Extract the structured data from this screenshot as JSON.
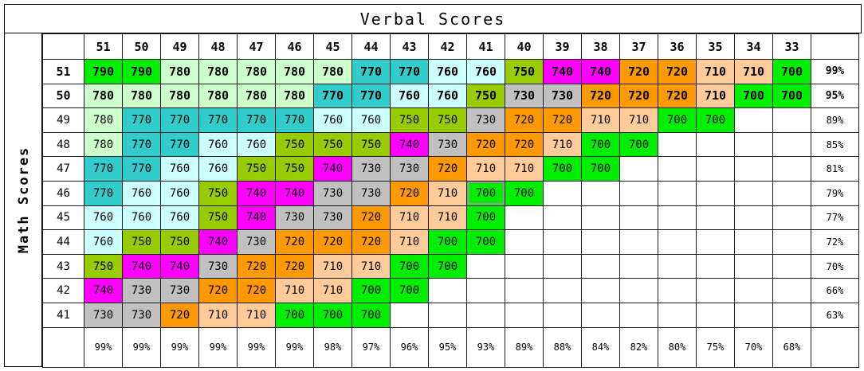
{
  "title": "Verbal Scores",
  "row_axis_label": "Math Scores",
  "verbal_headers": [
    "51",
    "50",
    "49",
    "48",
    "47",
    "46",
    "45",
    "44",
    "43",
    "42",
    "41",
    "40",
    "39",
    "38",
    "37",
    "36",
    "35",
    "34",
    "33"
  ],
  "rows": [
    {
      "math": "51",
      "pct": "99%",
      "bold": true,
      "cells": [
        "790",
        "790",
        "780",
        "780",
        "780",
        "780",
        "780",
        "770",
        "770",
        "760",
        "760",
        "750",
        "740",
        "740",
        "720",
        "720",
        "710",
        "710",
        "700"
      ]
    },
    {
      "math": "50",
      "pct": "95%",
      "bold": true,
      "cells": [
        "780",
        "780",
        "780",
        "780",
        "780",
        "780",
        "770",
        "770",
        "760",
        "760",
        "750",
        "730",
        "730",
        "720",
        "720",
        "720",
        "710",
        "700",
        "700"
      ]
    },
    {
      "math": "49",
      "pct": "89%",
      "bold": false,
      "cells": [
        "780",
        "770",
        "770",
        "770",
        "770",
        "770",
        "760",
        "760",
        "750",
        "750",
        "730",
        "720",
        "720",
        "710",
        "710",
        "700",
        "700",
        "",
        ""
      ]
    },
    {
      "math": "48",
      "pct": "85%",
      "bold": false,
      "cells": [
        "780",
        "770",
        "770",
        "760",
        "760",
        "750",
        "750",
        "750",
        "740",
        "730",
        "720",
        "720",
        "710",
        "700",
        "700",
        "",
        "",
        "",
        ""
      ]
    },
    {
      "math": "47",
      "pct": "81%",
      "bold": false,
      "cells": [
        "770",
        "770",
        "760",
        "760",
        "750",
        "750",
        "740",
        "730",
        "730",
        "720",
        "710",
        "710",
        "700",
        "700",
        "",
        "",
        "",
        "",
        ""
      ]
    },
    {
      "math": "46",
      "pct": "79%",
      "bold": false,
      "cells": [
        "770",
        "760",
        "760",
        "750",
        "740",
        "740",
        "730",
        "730",
        "720",
        "710",
        "700",
        "700",
        "",
        "",
        "",
        "",
        "",
        "",
        ""
      ]
    },
    {
      "math": "45",
      "pct": "77%",
      "bold": false,
      "cells": [
        "760",
        "760",
        "760",
        "750",
        "740",
        "730",
        "730",
        "720",
        "710",
        "710",
        "700",
        "",
        "",
        "",
        "",
        "",
        "",
        "",
        ""
      ]
    },
    {
      "math": "44",
      "pct": "72%",
      "bold": false,
      "cells": [
        "760",
        "750",
        "750",
        "740",
        "730",
        "720",
        "720",
        "720",
        "710",
        "700",
        "700",
        "",
        "",
        "",
        "",
        "",
        "",
        "",
        ""
      ]
    },
    {
      "math": "43",
      "pct": "70%",
      "bold": false,
      "cells": [
        "750",
        "740",
        "740",
        "730",
        "720",
        "720",
        "710",
        "710",
        "700",
        "700",
        "",
        "",
        "",
        "",
        "",
        "",
        "",
        "",
        ""
      ]
    },
    {
      "math": "42",
      "pct": "66%",
      "bold": false,
      "cells": [
        "740",
        "730",
        "730",
        "720",
        "720",
        "710",
        "710",
        "700",
        "700",
        "",
        "",
        "",
        "",
        "",
        "",
        "",
        "",
        "",
        ""
      ]
    },
    {
      "math": "41",
      "pct": "63%",
      "bold": false,
      "cells": [
        "730",
        "730",
        "720",
        "710",
        "710",
        "700",
        "700",
        "700",
        "",
        "",
        "",
        "",
        "",
        "",
        "",
        "",
        "",
        "",
        ""
      ]
    }
  ],
  "verbal_percentiles": [
    "99%",
    "99%",
    "99%",
    "99%",
    "99%",
    "99%",
    "98%",
    "97%",
    "96%",
    "95%",
    "93%",
    "89%",
    "88%",
    "84%",
    "82%",
    "80%",
    "75%",
    "70%",
    "68%"
  ],
  "score_colors": {
    "790": "#00ee00",
    "780": "#ccffcc",
    "770": "#33cccc",
    "760": "#ccffff",
    "750": "#99cc00",
    "740": "#ff00ff",
    "730": "#c0c0c0",
    "720": "#ff9900",
    "710": "#ffcc99",
    "700": "#00ee00"
  },
  "selected_cell": {
    "math": "46",
    "verbal": "41"
  }
}
